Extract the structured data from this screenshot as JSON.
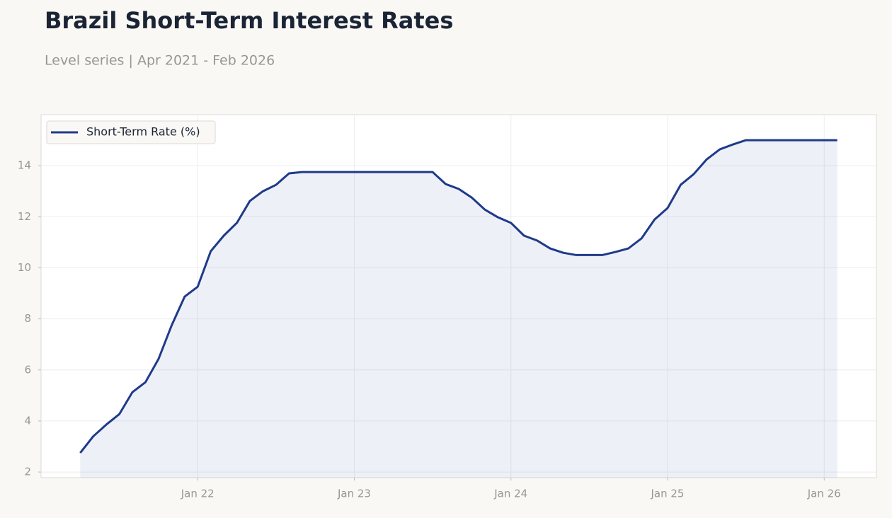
{
  "chart_data": {
    "type": "line",
    "title": "Brazil Short-Term Interest Rates",
    "subtitle": "Level series | Apr 2021 - Feb 2026",
    "x": [
      "2021-04",
      "2021-05",
      "2021-06",
      "2021-07",
      "2021-08",
      "2021-09",
      "2021-10",
      "2021-11",
      "2021-12",
      "2022-01",
      "2022-02",
      "2022-03",
      "2022-04",
      "2022-05",
      "2022-06",
      "2022-07",
      "2022-08",
      "2022-09",
      "2022-10",
      "2022-11",
      "2022-12",
      "2023-01",
      "2023-02",
      "2023-03",
      "2023-04",
      "2023-05",
      "2023-06",
      "2023-07",
      "2023-08",
      "2023-09",
      "2023-10",
      "2023-11",
      "2023-12",
      "2024-01",
      "2024-02",
      "2024-03",
      "2024-04",
      "2024-05",
      "2024-06",
      "2024-07",
      "2024-08",
      "2024-09",
      "2024-10",
      "2024-11",
      "2024-12",
      "2025-01",
      "2025-02",
      "2025-03",
      "2025-04",
      "2025-05",
      "2025-06",
      "2025-07",
      "2025-08",
      "2025-09",
      "2025-10",
      "2025-11",
      "2025-12",
      "2026-01",
      "2026-02"
    ],
    "series": [
      {
        "name": "Short-Term Rate (%)",
        "color": "#1f3a8a",
        "values": [
          2.75,
          3.4,
          3.86,
          4.27,
          5.13,
          5.52,
          6.43,
          7.74,
          8.87,
          9.26,
          10.65,
          11.26,
          11.76,
          12.62,
          13.0,
          13.25,
          13.7,
          13.75,
          13.75,
          13.75,
          13.75,
          13.75,
          13.75,
          13.75,
          13.75,
          13.75,
          13.75,
          13.75,
          13.28,
          13.09,
          12.75,
          12.28,
          11.98,
          11.76,
          11.26,
          11.07,
          10.76,
          10.59,
          10.5,
          10.5,
          10.5,
          10.62,
          10.76,
          11.15,
          11.89,
          12.34,
          13.25,
          13.67,
          14.25,
          14.64,
          14.83,
          15.0,
          15.0,
          15.0,
          15.0,
          15.0,
          15.0,
          15.0,
          15.0
        ]
      }
    ],
    "xlim": [
      "2021-01",
      "2026-05"
    ],
    "xticks": [
      {
        "value": "2022-01",
        "label": "Jan 22"
      },
      {
        "value": "2023-01",
        "label": "Jan 23"
      },
      {
        "value": "2024-01",
        "label": "Jan 24"
      },
      {
        "value": "2025-01",
        "label": "Jan 25"
      },
      {
        "value": "2026-01",
        "label": "Jan 26"
      }
    ],
    "ylim": [
      1.78,
      16.0
    ],
    "yticks": [
      2,
      4,
      6,
      8,
      10,
      12,
      14
    ],
    "grid": true,
    "legend": "upper left"
  }
}
